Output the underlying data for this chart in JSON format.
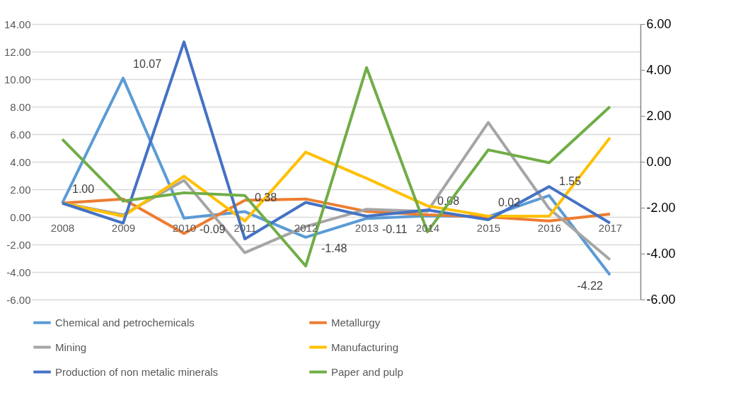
{
  "chart_data": {
    "type": "line",
    "categories": [
      "2008",
      "2009",
      "2010",
      "2011",
      "2012",
      "2013",
      "2014",
      "2015",
      "2016",
      "2017"
    ],
    "series": [
      {
        "name": "Chemical and petrochemicals",
        "color": "#5b9bd5",
        "values": [
          1.0,
          10.07,
          -0.09,
          0.38,
          -1.48,
          -0.11,
          0.08,
          0.02,
          1.55,
          -4.22
        ],
        "value_labels": [
          "1.00",
          "10.07",
          "-0.09",
          "0.38",
          "-1.48",
          "-0.11",
          "0.08",
          "0.02",
          "1.55",
          "-4.22"
        ]
      },
      {
        "name": "Metallurgy",
        "color": "#ed7d31",
        "values": [
          1.0,
          1.3,
          -1.2,
          1.2,
          1.3,
          0.4,
          0.15,
          0.0,
          -0.3,
          0.2
        ]
      },
      {
        "name": "Mining",
        "color": "#a5a5a5",
        "values": [
          1.0,
          0.15,
          2.65,
          -2.6,
          -0.7,
          0.55,
          0.4,
          6.85,
          0.6,
          -3.1
        ]
      },
      {
        "name": "Manufacturing",
        "color": "#ffc000",
        "values": [
          1.0,
          0.05,
          2.95,
          -0.3,
          4.7,
          2.8,
          0.8,
          0.05,
          0.05,
          5.75
        ]
      },
      {
        "name": "Production of non metalic minerals",
        "color": "#4472c4",
        "values": [
          1.0,
          -0.45,
          12.7,
          -1.6,
          1.05,
          0.05,
          0.5,
          -0.2,
          2.2,
          -0.45
        ]
      },
      {
        "name": "Paper and pulp",
        "color": "#70ad47",
        "axis": "y2",
        "values": [
          0.98,
          -1.71,
          -1.35,
          -1.47,
          -4.54,
          4.1,
          -3.05,
          0.52,
          -0.04,
          2.4
        ]
      }
    ],
    "ylim": [
      -6,
      14
    ],
    "yticks": [
      {
        "value": -6,
        "label": "-6.00"
      },
      {
        "value": -4,
        "label": "-4.00"
      },
      {
        "value": -2,
        "label": "-2.00"
      },
      {
        "value": 0,
        "label": "0.00"
      },
      {
        "value": 2,
        "label": "2.00"
      },
      {
        "value": 4,
        "label": "4.00"
      },
      {
        "value": 6,
        "label": "6.00"
      },
      {
        "value": 8,
        "label": "8.00"
      },
      {
        "value": 10,
        "label": "10.00"
      },
      {
        "value": 12,
        "label": "12.00"
      },
      {
        "value": 14,
        "label": "14.00"
      }
    ],
    "y2lim": [
      -6,
      6
    ],
    "y2ticks": [
      {
        "value": -6,
        "label": "-6.00"
      },
      {
        "value": -4,
        "label": "-4.00"
      },
      {
        "value": -2,
        "label": "-2.00"
      },
      {
        "value": 0,
        "label": "0.00"
      },
      {
        "value": 2,
        "label": "2.00"
      },
      {
        "value": 4,
        "label": "4.00"
      },
      {
        "value": 6,
        "label": "6.00"
      }
    ],
    "grid": "y",
    "legend": "bottom",
    "marker": "none",
    "line_style": "solid"
  }
}
